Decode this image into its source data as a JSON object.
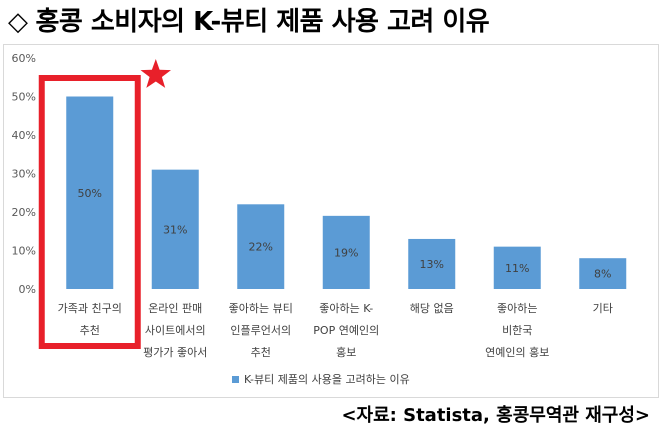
{
  "header": {
    "diamond": "◇",
    "title": "홍콩 소비자의 K-뷰티 제품 사용 고려 이유"
  },
  "source": "<자료: Statista, 홍콩무역관 재구성>",
  "colors": {
    "bar": "#5b9bd5",
    "highlight_box": "#e8202a",
    "star": "#e8202a",
    "label_text": "#404040",
    "axis_text": "#595959"
  },
  "highlight_icon": "star-icon",
  "chart_data": {
    "type": "bar",
    "title": "",
    "xlabel": "",
    "ylabel": "",
    "ylim": [
      0,
      60
    ],
    "yticks": [
      "0%",
      "10%",
      "20%",
      "30%",
      "40%",
      "50%",
      "60%"
    ],
    "grid": false,
    "legend_position": "bottom",
    "categories": [
      [
        "가족과 친구의",
        "추천"
      ],
      [
        "온라인 판매",
        "사이트에서의",
        "평가가 좋아서"
      ],
      [
        "좋아하는 뷰티",
        "인플루언서의",
        "추천"
      ],
      [
        "좋아하는 K-",
        "POP 연예인의",
        "홍보"
      ],
      [
        "해당 없음"
      ],
      [
        "좋아하는",
        "비한국",
        "연예인의 홍보"
      ],
      [
        "기타"
      ]
    ],
    "series": [
      {
        "name": "K-뷰티 제품의 사용을 고려하는 이유",
        "values": [
          50,
          31,
          22,
          19,
          13,
          11,
          8
        ],
        "labels": [
          "50%",
          "31%",
          "22%",
          "19%",
          "13%",
          "11%",
          "8%"
        ]
      }
    ],
    "highlighted_index": 0
  }
}
